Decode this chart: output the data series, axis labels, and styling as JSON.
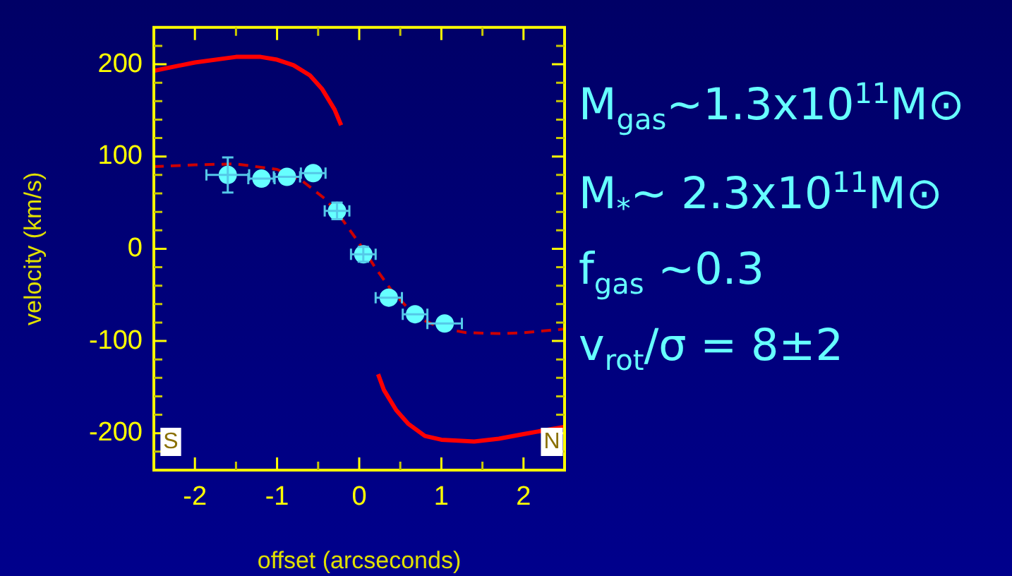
{
  "chart_data": {
    "type": "scatter",
    "xlabel": "offset (arcseconds)",
    "ylabel": "velocity (km/s)",
    "xlim": [
      -2.5,
      2.5
    ],
    "ylim": [
      -240,
      240
    ],
    "xticks": [
      -2,
      {
        "value": -1.5,
        "label": null
      },
      -1,
      {
        "value": -0.5,
        "label": null
      },
      0,
      {
        "value": 0.5,
        "label": null
      },
      1,
      {
        "value": 1.5,
        "label": null
      },
      2
    ],
    "yticks": [
      {
        "value": -220,
        "label": null
      },
      -200,
      {
        "value": -180,
        "label": null
      },
      {
        "value": -160,
        "label": null
      },
      {
        "value": -140,
        "label": null
      },
      {
        "value": -120,
        "label": null
      },
      -100,
      {
        "value": -80,
        "label": null
      },
      {
        "value": -60,
        "label": null
      },
      {
        "value": -40,
        "label": null
      },
      {
        "value": -20,
        "label": null
      },
      0,
      {
        "value": 20,
        "label": null
      },
      {
        "value": 40,
        "label": null
      },
      {
        "value": 60,
        "label": null
      },
      {
        "value": 80,
        "label": null
      },
      100,
      {
        "value": 120,
        "label": null
      },
      {
        "value": 140,
        "label": null
      },
      {
        "value": 160,
        "label": null
      },
      {
        "value": 180,
        "label": null
      },
      200,
      {
        "value": 220,
        "label": null
      }
    ],
    "grid": false,
    "legend": false,
    "annotations": [
      "S",
      "N",
      "M$_{gas}$~1.3x10$^{11}$M⊙",
      "M$_{*}$~ 2.3x10$^{11}$M⊙",
      "f$_{gas}$ ~0.3",
      "v$_{rot}$/σ = 8±2"
    ],
    "series": [
      {
        "type": "line",
        "color": "#cc0000",
        "line_style": "dashed",
        "marker": "none",
        "x": [
          -2.5,
          -2,
          -1.5,
          -1,
          -0.7,
          -0.4,
          -0.2,
          0,
          0.2,
          0.4,
          0.6,
          0.8,
          1,
          1.3,
          1.7,
          2,
          2.5
        ],
        "values": [
          89,
          91,
          92,
          86,
          74,
          53,
          31,
          6,
          -21,
          -46,
          -65,
          -78,
          -86,
          -91,
          -92,
          -91,
          -87
        ]
      },
      {
        "type": "line",
        "color": "#ff0000",
        "line_style": "solid",
        "marker": "none",
        "x": [
          -2.5,
          -2,
          -1.5,
          -1.2,
          -1,
          -0.8,
          -0.6,
          -0.45,
          -0.3,
          -0.22
        ],
        "values": [
          193,
          202,
          208,
          208,
          205,
          199,
          188,
          173,
          151,
          134
        ]
      },
      {
        "type": "line",
        "color": "#ff0000",
        "line_style": "solid",
        "marker": "none",
        "x": [
          0.23,
          0.3,
          0.45,
          0.6,
          0.8,
          1,
          1.4,
          1.7,
          2,
          2.5
        ],
        "values": [
          -136,
          -153,
          -175,
          -190,
          -203,
          -207,
          -209,
          -206,
          -201,
          -193
        ]
      },
      {
        "type": "scatter",
        "color": "#66ffff",
        "marker": "circle",
        "x": [
          -1.6,
          -1.19,
          -0.88,
          -0.56,
          -0.27,
          0.05,
          0.36,
          0.68,
          1.04
        ],
        "values": [
          80,
          76,
          78,
          82,
          41,
          -6,
          -53,
          -71,
          -81
        ],
        "errors": [
          19,
          null,
          null,
          null,
          9,
          8,
          null,
          null,
          null
        ],
        "xerrors": [
          0.26,
          0.16,
          0.16,
          0.15,
          0.15,
          0.15,
          0.16,
          0.15,
          0.21
        ]
      }
    ]
  }
}
